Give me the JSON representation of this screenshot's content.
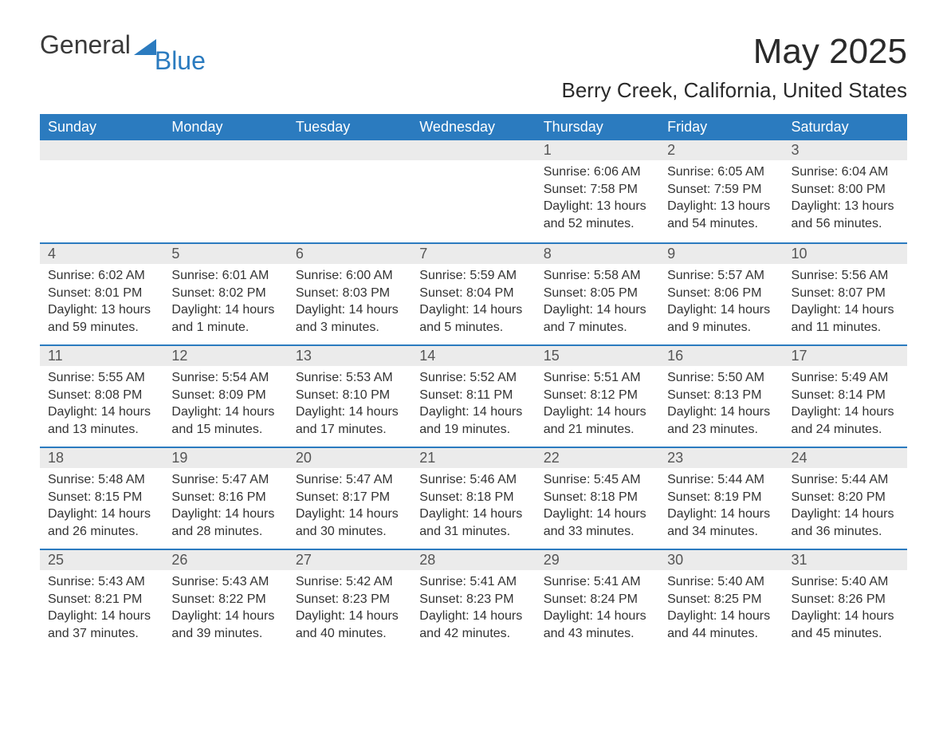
{
  "logo": {
    "text_main": "General",
    "text_blue": "Blue"
  },
  "title": "May 2025",
  "location": "Berry Creek, California, United States",
  "colors": {
    "header_bg": "#2b7bbf",
    "header_text": "#ffffff",
    "daybar_bg": "#ebebeb",
    "daybar_border": "#2b7bbf",
    "body_bg": "#ffffff",
    "text": "#333333"
  },
  "weekdays": [
    "Sunday",
    "Monday",
    "Tuesday",
    "Wednesday",
    "Thursday",
    "Friday",
    "Saturday"
  ],
  "labels": {
    "sunrise": "Sunrise:",
    "sunset": "Sunset:",
    "daylight": "Daylight:"
  },
  "weeks": [
    [
      null,
      null,
      null,
      null,
      {
        "day": "1",
        "sunrise": "6:06 AM",
        "sunset": "7:58 PM",
        "daylight": "13 hours and 52 minutes."
      },
      {
        "day": "2",
        "sunrise": "6:05 AM",
        "sunset": "7:59 PM",
        "daylight": "13 hours and 54 minutes."
      },
      {
        "day": "3",
        "sunrise": "6:04 AM",
        "sunset": "8:00 PM",
        "daylight": "13 hours and 56 minutes."
      }
    ],
    [
      {
        "day": "4",
        "sunrise": "6:02 AM",
        "sunset": "8:01 PM",
        "daylight": "13 hours and 59 minutes."
      },
      {
        "day": "5",
        "sunrise": "6:01 AM",
        "sunset": "8:02 PM",
        "daylight": "14 hours and 1 minute."
      },
      {
        "day": "6",
        "sunrise": "6:00 AM",
        "sunset": "8:03 PM",
        "daylight": "14 hours and 3 minutes."
      },
      {
        "day": "7",
        "sunrise": "5:59 AM",
        "sunset": "8:04 PM",
        "daylight": "14 hours and 5 minutes."
      },
      {
        "day": "8",
        "sunrise": "5:58 AM",
        "sunset": "8:05 PM",
        "daylight": "14 hours and 7 minutes."
      },
      {
        "day": "9",
        "sunrise": "5:57 AM",
        "sunset": "8:06 PM",
        "daylight": "14 hours and 9 minutes."
      },
      {
        "day": "10",
        "sunrise": "5:56 AM",
        "sunset": "8:07 PM",
        "daylight": "14 hours and 11 minutes."
      }
    ],
    [
      {
        "day": "11",
        "sunrise": "5:55 AM",
        "sunset": "8:08 PM",
        "daylight": "14 hours and 13 minutes."
      },
      {
        "day": "12",
        "sunrise": "5:54 AM",
        "sunset": "8:09 PM",
        "daylight": "14 hours and 15 minutes."
      },
      {
        "day": "13",
        "sunrise": "5:53 AM",
        "sunset": "8:10 PM",
        "daylight": "14 hours and 17 minutes."
      },
      {
        "day": "14",
        "sunrise": "5:52 AM",
        "sunset": "8:11 PM",
        "daylight": "14 hours and 19 minutes."
      },
      {
        "day": "15",
        "sunrise": "5:51 AM",
        "sunset": "8:12 PM",
        "daylight": "14 hours and 21 minutes."
      },
      {
        "day": "16",
        "sunrise": "5:50 AM",
        "sunset": "8:13 PM",
        "daylight": "14 hours and 23 minutes."
      },
      {
        "day": "17",
        "sunrise": "5:49 AM",
        "sunset": "8:14 PM",
        "daylight": "14 hours and 24 minutes."
      }
    ],
    [
      {
        "day": "18",
        "sunrise": "5:48 AM",
        "sunset": "8:15 PM",
        "daylight": "14 hours and 26 minutes."
      },
      {
        "day": "19",
        "sunrise": "5:47 AM",
        "sunset": "8:16 PM",
        "daylight": "14 hours and 28 minutes."
      },
      {
        "day": "20",
        "sunrise": "5:47 AM",
        "sunset": "8:17 PM",
        "daylight": "14 hours and 30 minutes."
      },
      {
        "day": "21",
        "sunrise": "5:46 AM",
        "sunset": "8:18 PM",
        "daylight": "14 hours and 31 minutes."
      },
      {
        "day": "22",
        "sunrise": "5:45 AM",
        "sunset": "8:18 PM",
        "daylight": "14 hours and 33 minutes."
      },
      {
        "day": "23",
        "sunrise": "5:44 AM",
        "sunset": "8:19 PM",
        "daylight": "14 hours and 34 minutes."
      },
      {
        "day": "24",
        "sunrise": "5:44 AM",
        "sunset": "8:20 PM",
        "daylight": "14 hours and 36 minutes."
      }
    ],
    [
      {
        "day": "25",
        "sunrise": "5:43 AM",
        "sunset": "8:21 PM",
        "daylight": "14 hours and 37 minutes."
      },
      {
        "day": "26",
        "sunrise": "5:43 AM",
        "sunset": "8:22 PM",
        "daylight": "14 hours and 39 minutes."
      },
      {
        "day": "27",
        "sunrise": "5:42 AM",
        "sunset": "8:23 PM",
        "daylight": "14 hours and 40 minutes."
      },
      {
        "day": "28",
        "sunrise": "5:41 AM",
        "sunset": "8:23 PM",
        "daylight": "14 hours and 42 minutes."
      },
      {
        "day": "29",
        "sunrise": "5:41 AM",
        "sunset": "8:24 PM",
        "daylight": "14 hours and 43 minutes."
      },
      {
        "day": "30",
        "sunrise": "5:40 AM",
        "sunset": "8:25 PM",
        "daylight": "14 hours and 44 minutes."
      },
      {
        "day": "31",
        "sunrise": "5:40 AM",
        "sunset": "8:26 PM",
        "daylight": "14 hours and 45 minutes."
      }
    ]
  ]
}
